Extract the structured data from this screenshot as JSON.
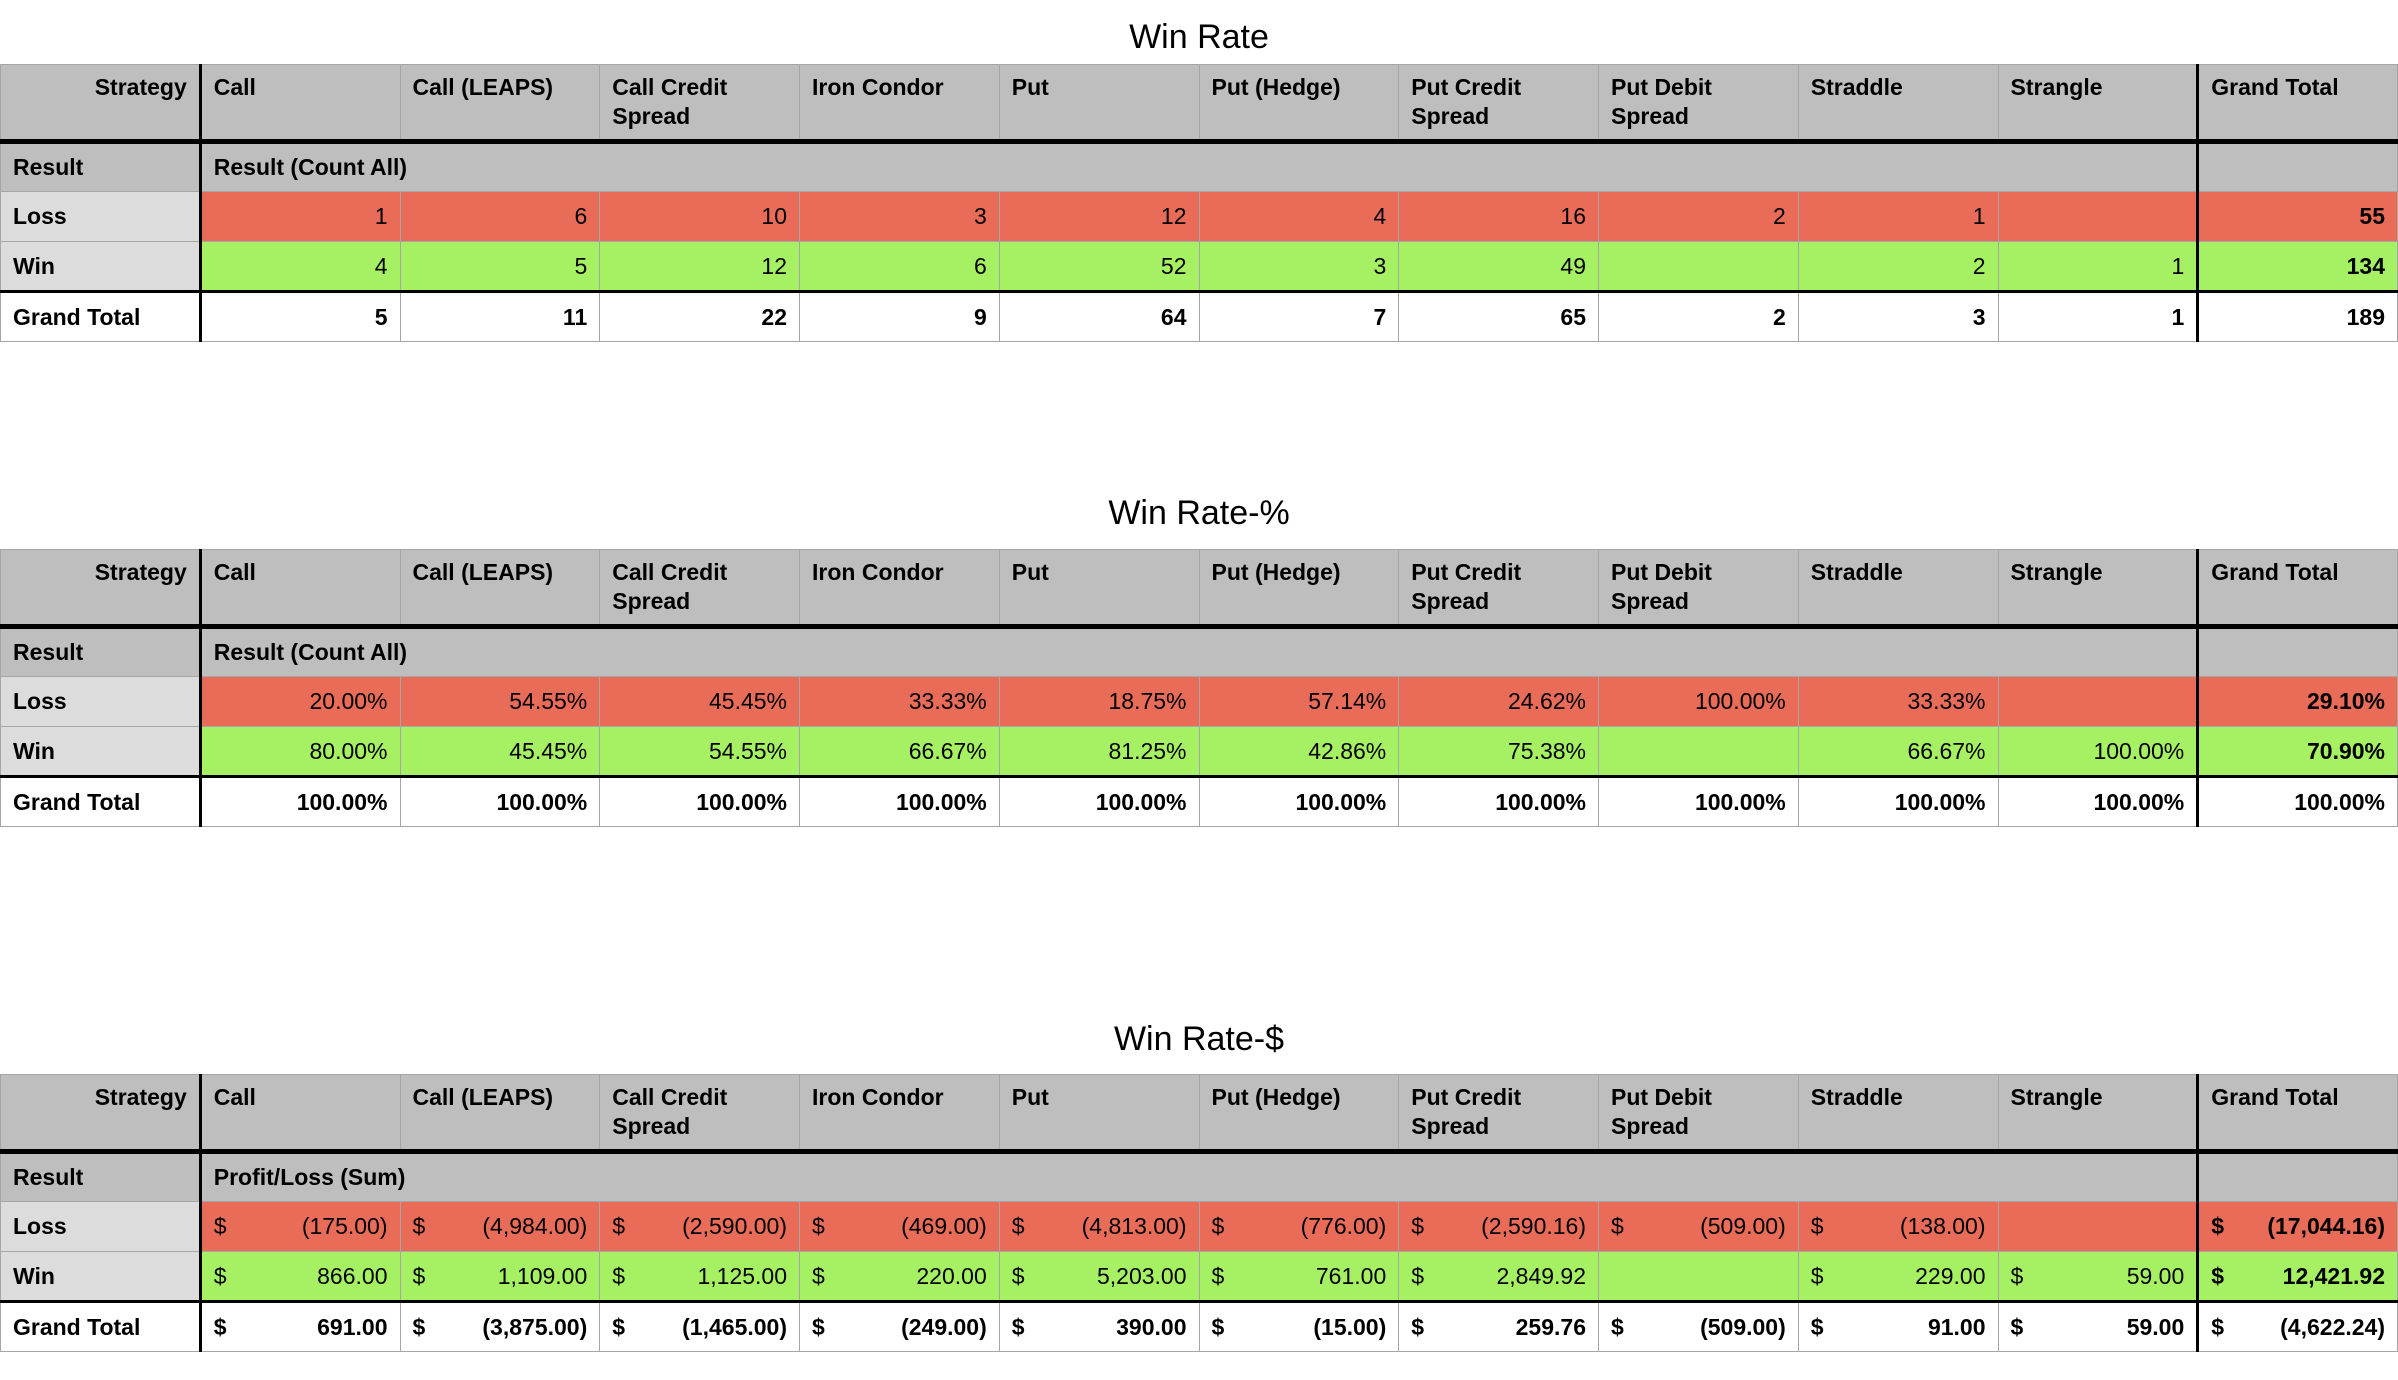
{
  "colors": {
    "header_bg": "#BEBEBE",
    "row_label_bg": "#DCDCDC",
    "loss_bg": "#E86C57",
    "win_bg": "#A5F163",
    "grid_line": "#A6A6A6",
    "strong_line": "#000000",
    "page_bg": "#FFFFFF"
  },
  "tables": [
    {
      "title": "Win Rate",
      "corner_header": "Strategy",
      "columns": [
        "Call",
        "Call (LEAPS)",
        "Call Credit Spread",
        "Iron Condor",
        "Put",
        "Put (Hedge)",
        "Put Credit Spread",
        "Put Debit Spread",
        "Straddle",
        "Strangle"
      ],
      "grand_total_label": "Grand Total",
      "result_row": {
        "label": "Result",
        "span_label": "Result (Count All)"
      },
      "currency": false,
      "currency_symbol": "",
      "rows": [
        {
          "label": "Loss",
          "kind": "loss",
          "values": [
            "1",
            "6",
            "10",
            "3",
            "12",
            "4",
            "16",
            "2",
            "1",
            "",
            "55"
          ]
        },
        {
          "label": "Win",
          "kind": "win",
          "values": [
            "4",
            "5",
            "12",
            "6",
            "52",
            "3",
            "49",
            "",
            "2",
            "1",
            "134"
          ]
        },
        {
          "label": "Grand Total",
          "kind": "total",
          "values": [
            "5",
            "11",
            "22",
            "9",
            "64",
            "7",
            "65",
            "2",
            "3",
            "1",
            "189"
          ]
        }
      ]
    },
    {
      "title": "Win Rate-%",
      "corner_header": "Strategy",
      "columns": [
        "Call",
        "Call (LEAPS)",
        "Call Credit Spread",
        "Iron Condor",
        "Put",
        "Put (Hedge)",
        "Put Credit Spread",
        "Put Debit Spread",
        "Straddle",
        "Strangle"
      ],
      "grand_total_label": "Grand Total",
      "result_row": {
        "label": "Result",
        "span_label": "Result (Count All)"
      },
      "currency": false,
      "currency_symbol": "",
      "rows": [
        {
          "label": "Loss",
          "kind": "loss",
          "values": [
            "20.00%",
            "54.55%",
            "45.45%",
            "33.33%",
            "18.75%",
            "57.14%",
            "24.62%",
            "100.00%",
            "33.33%",
            "",
            "29.10%"
          ]
        },
        {
          "label": "Win",
          "kind": "win",
          "values": [
            "80.00%",
            "45.45%",
            "54.55%",
            "66.67%",
            "81.25%",
            "42.86%",
            "75.38%",
            "",
            "66.67%",
            "100.00%",
            "70.90%"
          ]
        },
        {
          "label": "Grand Total",
          "kind": "total",
          "values": [
            "100.00%",
            "100.00%",
            "100.00%",
            "100.00%",
            "100.00%",
            "100.00%",
            "100.00%",
            "100.00%",
            "100.00%",
            "100.00%",
            "100.00%"
          ]
        }
      ]
    },
    {
      "title": "Win Rate-$",
      "corner_header": "Strategy",
      "columns": [
        "Call",
        "Call (LEAPS)",
        "Call Credit Spread",
        "Iron Condor",
        "Put",
        "Put (Hedge)",
        "Put Credit Spread",
        "Put Debit Spread",
        "Straddle",
        "Strangle"
      ],
      "grand_total_label": "Grand Total",
      "result_row": {
        "label": "Result",
        "span_label": "Profit/Loss (Sum)"
      },
      "currency": true,
      "currency_symbol": "$",
      "rows": [
        {
          "label": "Loss",
          "kind": "loss",
          "values": [
            "(175.00)",
            "(4,984.00)",
            "(2,590.00)",
            "(469.00)",
            "(4,813.00)",
            "(776.00)",
            "(2,590.16)",
            "(509.00)",
            "(138.00)",
            "",
            "(17,044.16)"
          ]
        },
        {
          "label": "Win",
          "kind": "win",
          "values": [
            "866.00",
            "1,109.00",
            "1,125.00",
            "220.00",
            "5,203.00",
            "761.00",
            "2,849.92",
            "",
            "229.00",
            "59.00",
            "12,421.92"
          ]
        },
        {
          "label": "Grand Total",
          "kind": "total",
          "values": [
            "691.00",
            "(3,875.00)",
            "(1,465.00)",
            "(249.00)",
            "390.00",
            "(15.00)",
            "259.76",
            "(509.00)",
            "91.00",
            "59.00",
            "(4,622.24)"
          ]
        }
      ]
    }
  ]
}
